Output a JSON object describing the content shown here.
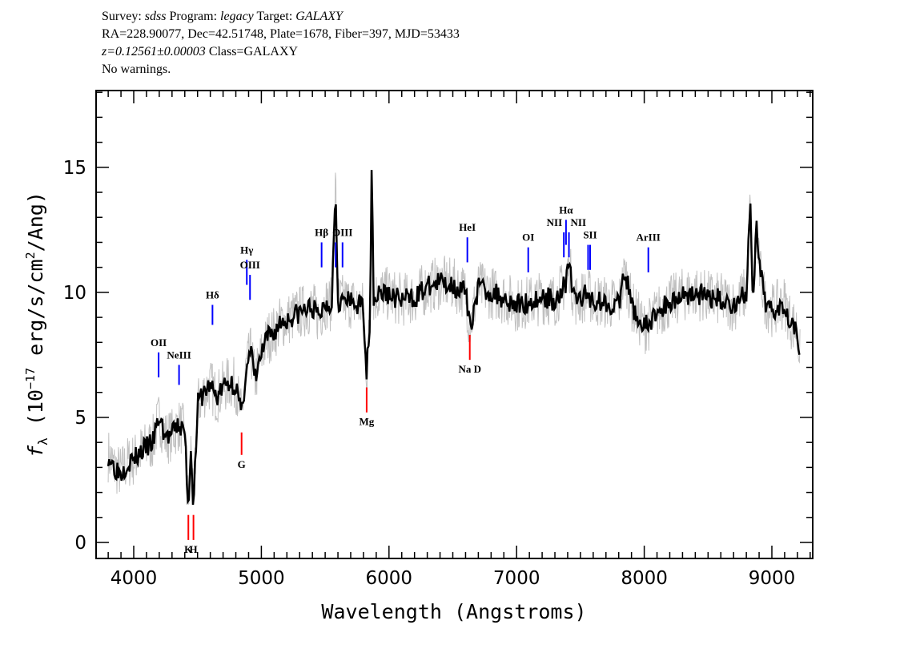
{
  "header": {
    "line1": {
      "survey_label": "Survey:",
      "survey": "sdss",
      "program_label": "Program:",
      "program": "legacy",
      "target_label": "Target:",
      "target": "GALAXY"
    },
    "line2": "RA=228.90077, Dec=42.51748, Plate=1678, Fiber=397, MJD=53433",
    "line3": {
      "z": "z=0.12561±0.00003",
      "class": "Class=GALAXY"
    },
    "line4": "No warnings."
  },
  "chart_data": {
    "type": "line",
    "xlabel": "Wavelength (Angstroms)",
    "ylabel": {
      "f": "f",
      "sub": "λ",
      "pre": " (10",
      "exp": "−17",
      "mid": " erg/s/cm",
      "exp2": "2",
      "post": "/Ang)"
    },
    "xlim": [
      3705,
      9320
    ],
    "ylim": [
      -0.64,
      18.07
    ],
    "xticks": [
      4000,
      5000,
      6000,
      7000,
      8000,
      9000
    ],
    "yticks": [
      0,
      5,
      10,
      15
    ],
    "grid": false,
    "colors": {
      "flux": "#000000",
      "raw_flux": "#c0c0c0",
      "emission": "#0000ff",
      "absorption": "#ff0000",
      "axis": "#000000"
    },
    "series": [
      {
        "x": [
          3800,
          3850,
          3900,
          3950,
          4000,
          4050,
          4100,
          4150,
          4200,
          4250,
          4300,
          4350,
          4400,
          4428,
          4450,
          4468,
          4500,
          4550,
          4600,
          4650,
          4700,
          4750,
          4800,
          4845,
          4880,
          4920,
          4950,
          5000,
          5050,
          5100,
          5150,
          5200,
          5300,
          5400,
          5450,
          5500,
          5550,
          5582,
          5600,
          5700,
          5800,
          5825,
          5850,
          5865,
          5880,
          5950,
          6000,
          6100,
          6200,
          6300,
          6400,
          6500,
          6600,
          6633,
          6700,
          6800,
          6900,
          7000,
          7100,
          7200,
          7300,
          7387,
          7410,
          7450,
          7560,
          7600,
          7700,
          7800,
          7850,
          7900,
          7950,
          8000,
          8050,
          8100,
          8200,
          8300,
          8400,
          8500,
          8600,
          8700,
          8800,
          8830,
          8850,
          8880,
          8900,
          8950,
          9000,
          9100,
          9150,
          9200,
          9220
        ],
        "y": [
          3.5,
          3.0,
          2.8,
          3.2,
          3.3,
          3.6,
          3.8,
          4.0,
          5.0,
          4.2,
          4.3,
          4.7,
          4.4,
          1.4,
          4.0,
          1.3,
          5.5,
          6.0,
          6.3,
          5.8,
          6.2,
          6.4,
          6.3,
          5.0,
          7.0,
          7.6,
          6.5,
          7.5,
          8.2,
          8.4,
          8.8,
          8.9,
          9.2,
          9.4,
          9.0,
          9.6,
          9.5,
          14.3,
          9.7,
          9.6,
          9.4,
          6.7,
          9.0,
          15.2,
          9.8,
          10.0,
          9.9,
          9.7,
          9.8,
          10.2,
          10.4,
          10.3,
          10.0,
          8.6,
          10.2,
          10.0,
          9.8,
          9.5,
          9.6,
          9.8,
          9.7,
          10.4,
          11.2,
          9.7,
          9.9,
          9.7,
          9.6,
          9.5,
          10.8,
          9.5,
          9.0,
          8.6,
          8.8,
          9.2,
          9.6,
          9.9,
          10.0,
          9.8,
          9.7,
          9.5,
          10.0,
          13.5,
          9.6,
          12.5,
          11.0,
          9.6,
          9.3,
          9.6,
          8.8,
          8.5,
          7.5
        ]
      }
    ],
    "lines": [
      {
        "label": "OII",
        "x": 4195,
        "y_top": 7.6,
        "y_bottom": 6.6,
        "kind": "emission"
      },
      {
        "label": "NeIII",
        "x": 4355,
        "y_top": 7.1,
        "y_bottom": 6.3,
        "kind": "emission"
      },
      {
        "label": "K",
        "x": 4428,
        "y_top": 1.1,
        "y_bottom": 0.1,
        "kind": "absorption"
      },
      {
        "label": "H",
        "x": 4468,
        "y_top": 1.1,
        "y_bottom": 0.1,
        "kind": "absorption"
      },
      {
        "label": "Hδ",
        "x": 4617,
        "y_top": 9.5,
        "y_bottom": 8.7,
        "kind": "emission"
      },
      {
        "label": "G",
        "x": 4845,
        "y_top": 4.4,
        "y_bottom": 3.5,
        "kind": "absorption"
      },
      {
        "label": "Hγ",
        "x": 4886,
        "y_top": 11.3,
        "y_bottom": 10.3,
        "kind": "emission"
      },
      {
        "label": "OIII",
        "x": 4911,
        "y_top": 10.7,
        "y_bottom": 9.7,
        "kind": "emission"
      },
      {
        "label": "Hβ",
        "x": 5472,
        "y_top": 12.0,
        "y_bottom": 11.0,
        "kind": "emission"
      },
      {
        "label": "",
        "x": 5582,
        "y_top": 12.0,
        "y_bottom": 11.0,
        "kind": "emission"
      },
      {
        "label": "OIII",
        "x": 5636,
        "y_top": 12.0,
        "y_bottom": 11.0,
        "kind": "emission"
      },
      {
        "label": "Mg",
        "x": 5825,
        "y_top": 6.2,
        "y_bottom": 5.2,
        "kind": "absorption"
      },
      {
        "label": "HeI",
        "x": 6614,
        "y_top": 12.2,
        "y_bottom": 11.2,
        "kind": "emission"
      },
      {
        "label": "Na D",
        "x": 6633,
        "y_top": 8.3,
        "y_bottom": 7.3,
        "kind": "absorption"
      },
      {
        "label": "OI",
        "x": 7091,
        "y_top": 11.8,
        "y_bottom": 10.8,
        "kind": "emission"
      },
      {
        "label": "NII",
        "x": 7370,
        "y_top": 12.4,
        "y_bottom": 11.4,
        "kind": "emission",
        "anchor": "end"
      },
      {
        "label": "Hα",
        "x": 7387,
        "y_top": 12.9,
        "y_bottom": 11.9,
        "kind": "emission"
      },
      {
        "label": "NII",
        "x": 7410,
        "y_top": 12.4,
        "y_bottom": 11.4,
        "kind": "emission",
        "anchor": "start"
      },
      {
        "label": "",
        "x": 7560,
        "y_top": 11.9,
        "y_bottom": 10.9,
        "kind": "emission"
      },
      {
        "label": "SII",
        "x": 7576,
        "y_top": 11.9,
        "y_bottom": 10.9,
        "kind": "emission"
      },
      {
        "label": "ArIII",
        "x": 8032,
        "y_top": 11.8,
        "y_bottom": 10.8,
        "kind": "emission"
      }
    ]
  }
}
